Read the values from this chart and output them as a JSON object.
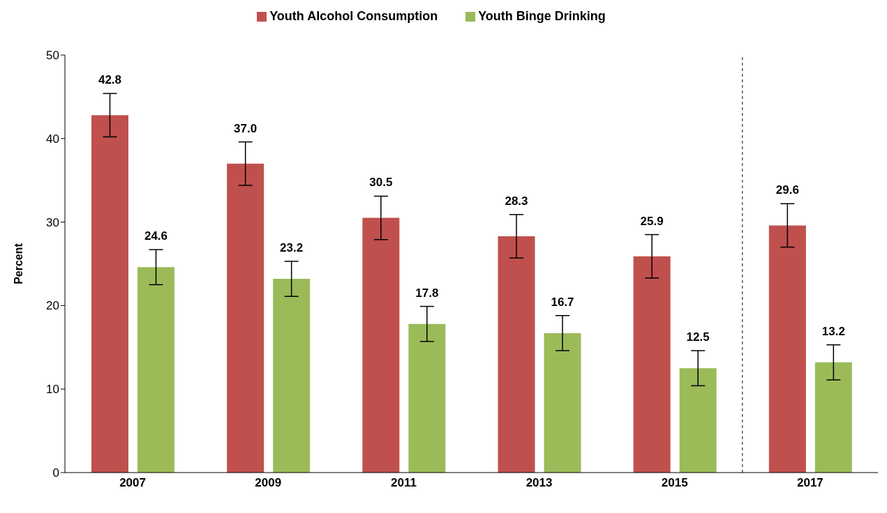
{
  "chart_data": {
    "type": "bar",
    "x": [
      2007,
      2009,
      2011,
      2013,
      2015,
      2017
    ],
    "xlim": [
      2006,
      2018
    ],
    "xticks": [
      2007,
      2009,
      2011,
      2013,
      2015,
      2017
    ],
    "ylabel": "Percent",
    "ylim": [
      0,
      50
    ],
    "yticks": [
      0,
      10,
      20,
      30,
      40,
      50
    ],
    "series": [
      {
        "name": "Youth Alcohol Consumption",
        "color": "#c0504d",
        "values": [
          42.8,
          37.0,
          30.5,
          28.3,
          25.9,
          29.6
        ],
        "value_labels": [
          "42.8",
          "37.0",
          "30.5",
          "28.3",
          "25.9",
          "29.6"
        ],
        "errors": [
          2.6,
          2.6,
          2.6,
          2.6,
          2.6,
          2.6
        ]
      },
      {
        "name": "Youth Binge Drinking",
        "color": "#9bbb59",
        "values": [
          24.6,
          23.2,
          17.8,
          16.7,
          12.5,
          13.2
        ],
        "value_labels": [
          "24.6",
          "23.2",
          "17.8",
          "16.7",
          "12.5",
          "13.2"
        ],
        "errors": [
          2.1,
          2.1,
          2.1,
          2.1,
          2.1,
          2.1
        ]
      }
    ],
    "ref_lines": [
      {
        "axis": "x",
        "value": 2016,
        "color": "#000000",
        "line_style": "dashed"
      }
    ],
    "grid": false,
    "legend": "top"
  }
}
